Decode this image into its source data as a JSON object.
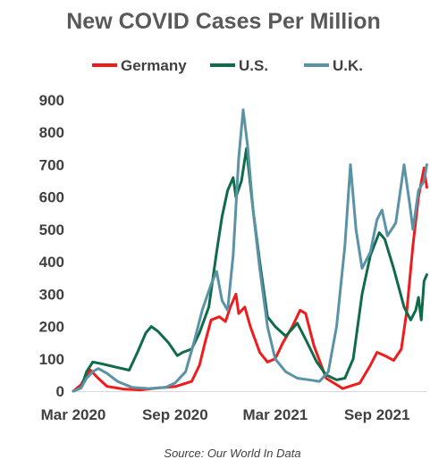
{
  "chart_data": {
    "type": "line",
    "title": "New COVID Cases Per Million",
    "xlabel": "",
    "ylabel": "",
    "ylim": [
      0,
      900
    ],
    "yticks": [
      0,
      100,
      200,
      300,
      400,
      500,
      600,
      700,
      800,
      900
    ],
    "xticks": [
      "Mar 2020",
      "Sep 2020",
      "Mar 2021",
      "Sep 2021"
    ],
    "x_range": [
      "2020-03-01",
      "2021-12-01"
    ],
    "grid": false,
    "legend_position": "top",
    "source": "Source: Our World In Data",
    "series": [
      {
        "name": "Germany",
        "color": "#ee1c1c",
        "points": [
          [
            "2020-03-01",
            0
          ],
          [
            "2020-03-15",
            20
          ],
          [
            "2020-03-25",
            50
          ],
          [
            "2020-04-01",
            65
          ],
          [
            "2020-04-15",
            40
          ],
          [
            "2020-05-01",
            15
          ],
          [
            "2020-06-01",
            6
          ],
          [
            "2020-07-01",
            4
          ],
          [
            "2020-08-01",
            10
          ],
          [
            "2020-09-01",
            14
          ],
          [
            "2020-10-01",
            30
          ],
          [
            "2020-10-15",
            80
          ],
          [
            "2020-10-25",
            150
          ],
          [
            "2020-11-05",
            220
          ],
          [
            "2020-11-20",
            230
          ],
          [
            "2020-12-01",
            215
          ],
          [
            "2020-12-10",
            260
          ],
          [
            "2020-12-20",
            300
          ],
          [
            "2020-12-25",
            240
          ],
          [
            "2021-01-05",
            260
          ],
          [
            "2021-01-15",
            200
          ],
          [
            "2021-02-01",
            120
          ],
          [
            "2021-02-15",
            90
          ],
          [
            "2021-03-01",
            100
          ],
          [
            "2021-03-15",
            150
          ],
          [
            "2021-04-01",
            200
          ],
          [
            "2021-04-15",
            250
          ],
          [
            "2021-04-25",
            240
          ],
          [
            "2021-05-10",
            140
          ],
          [
            "2021-06-01",
            40
          ],
          [
            "2021-07-01",
            8
          ],
          [
            "2021-08-01",
            25
          ],
          [
            "2021-08-20",
            80
          ],
          [
            "2021-09-01",
            120
          ],
          [
            "2021-09-15",
            110
          ],
          [
            "2021-10-01",
            95
          ],
          [
            "2021-10-15",
            130
          ],
          [
            "2021-10-25",
            250
          ],
          [
            "2021-11-05",
            450
          ],
          [
            "2021-11-15",
            600
          ],
          [
            "2021-11-25",
            690
          ],
          [
            "2021-11-30",
            630
          ]
        ]
      },
      {
        "name": "U.S.",
        "color": "#0f6b4a",
        "points": [
          [
            "2020-03-01",
            0
          ],
          [
            "2020-03-15",
            10
          ],
          [
            "2020-03-25",
            60
          ],
          [
            "2020-04-05",
            90
          ],
          [
            "2020-04-20",
            85
          ],
          [
            "2020-05-15",
            75
          ],
          [
            "2020-06-10",
            65
          ],
          [
            "2020-06-25",
            120
          ],
          [
            "2020-07-10",
            180
          ],
          [
            "2020-07-20",
            200
          ],
          [
            "2020-08-01",
            185
          ],
          [
            "2020-08-20",
            150
          ],
          [
            "2020-09-05",
            110
          ],
          [
            "2020-09-15",
            120
          ],
          [
            "2020-10-01",
            130
          ],
          [
            "2020-10-15",
            180
          ],
          [
            "2020-11-01",
            260
          ],
          [
            "2020-11-15",
            430
          ],
          [
            "2020-11-25",
            540
          ],
          [
            "2020-12-05",
            620
          ],
          [
            "2020-12-15",
            660
          ],
          [
            "2020-12-20",
            600
          ],
          [
            "2020-12-30",
            650
          ],
          [
            "2021-01-08",
            750
          ],
          [
            "2021-01-20",
            560
          ],
          [
            "2021-02-01",
            400
          ],
          [
            "2021-02-15",
            230
          ],
          [
            "2021-03-01",
            200
          ],
          [
            "2021-03-20",
            170
          ],
          [
            "2021-04-10",
            210
          ],
          [
            "2021-04-25",
            160
          ],
          [
            "2021-05-15",
            90
          ],
          [
            "2021-06-01",
            50
          ],
          [
            "2021-06-20",
            35
          ],
          [
            "2021-07-05",
            40
          ],
          [
            "2021-07-20",
            100
          ],
          [
            "2021-08-05",
            300
          ],
          [
            "2021-08-20",
            420
          ],
          [
            "2021-09-05",
            490
          ],
          [
            "2021-09-15",
            470
          ],
          [
            "2021-10-01",
            380
          ],
          [
            "2021-10-20",
            260
          ],
          [
            "2021-11-01",
            220
          ],
          [
            "2021-11-10",
            250
          ],
          [
            "2021-11-15",
            290
          ],
          [
            "2021-11-20",
            220
          ],
          [
            "2021-11-25",
            340
          ],
          [
            "2021-11-30",
            360
          ]
        ]
      },
      {
        "name": "U.K.",
        "color": "#5a93a6",
        "points": [
          [
            "2020-03-01",
            0
          ],
          [
            "2020-03-15",
            10
          ],
          [
            "2020-03-25",
            40
          ],
          [
            "2020-04-05",
            60
          ],
          [
            "2020-04-15",
            70
          ],
          [
            "2020-05-01",
            55
          ],
          [
            "2020-05-20",
            30
          ],
          [
            "2020-06-15",
            12
          ],
          [
            "2020-07-15",
            8
          ],
          [
            "2020-08-15",
            12
          ],
          [
            "2020-09-01",
            25
          ],
          [
            "2020-09-20",
            60
          ],
          [
            "2020-10-05",
            150
          ],
          [
            "2020-10-20",
            250
          ],
          [
            "2020-11-05",
            330
          ],
          [
            "2020-11-15",
            370
          ],
          [
            "2020-11-25",
            280
          ],
          [
            "2020-12-05",
            250
          ],
          [
            "2020-12-15",
            420
          ],
          [
            "2020-12-25",
            720
          ],
          [
            "2021-01-02",
            870
          ],
          [
            "2021-01-10",
            760
          ],
          [
            "2021-01-20",
            560
          ],
          [
            "2021-02-01",
            380
          ],
          [
            "2021-02-15",
            200
          ],
          [
            "2021-03-01",
            100
          ],
          [
            "2021-03-20",
            60
          ],
          [
            "2021-04-10",
            40
          ],
          [
            "2021-05-01",
            35
          ],
          [
            "2021-05-20",
            30
          ],
          [
            "2021-06-05",
            60
          ],
          [
            "2021-06-20",
            200
          ],
          [
            "2021-07-05",
            450
          ],
          [
            "2021-07-15",
            700
          ],
          [
            "2021-07-25",
            500
          ],
          [
            "2021-08-05",
            380
          ],
          [
            "2021-08-20",
            430
          ],
          [
            "2021-09-01",
            530
          ],
          [
            "2021-09-10",
            560
          ],
          [
            "2021-09-20",
            480
          ],
          [
            "2021-10-05",
            520
          ],
          [
            "2021-10-20",
            700
          ],
          [
            "2021-10-30",
            580
          ],
          [
            "2021-11-05",
            500
          ],
          [
            "2021-11-15",
            620
          ],
          [
            "2021-11-25",
            650
          ],
          [
            "2021-11-30",
            700
          ]
        ]
      }
    ]
  }
}
